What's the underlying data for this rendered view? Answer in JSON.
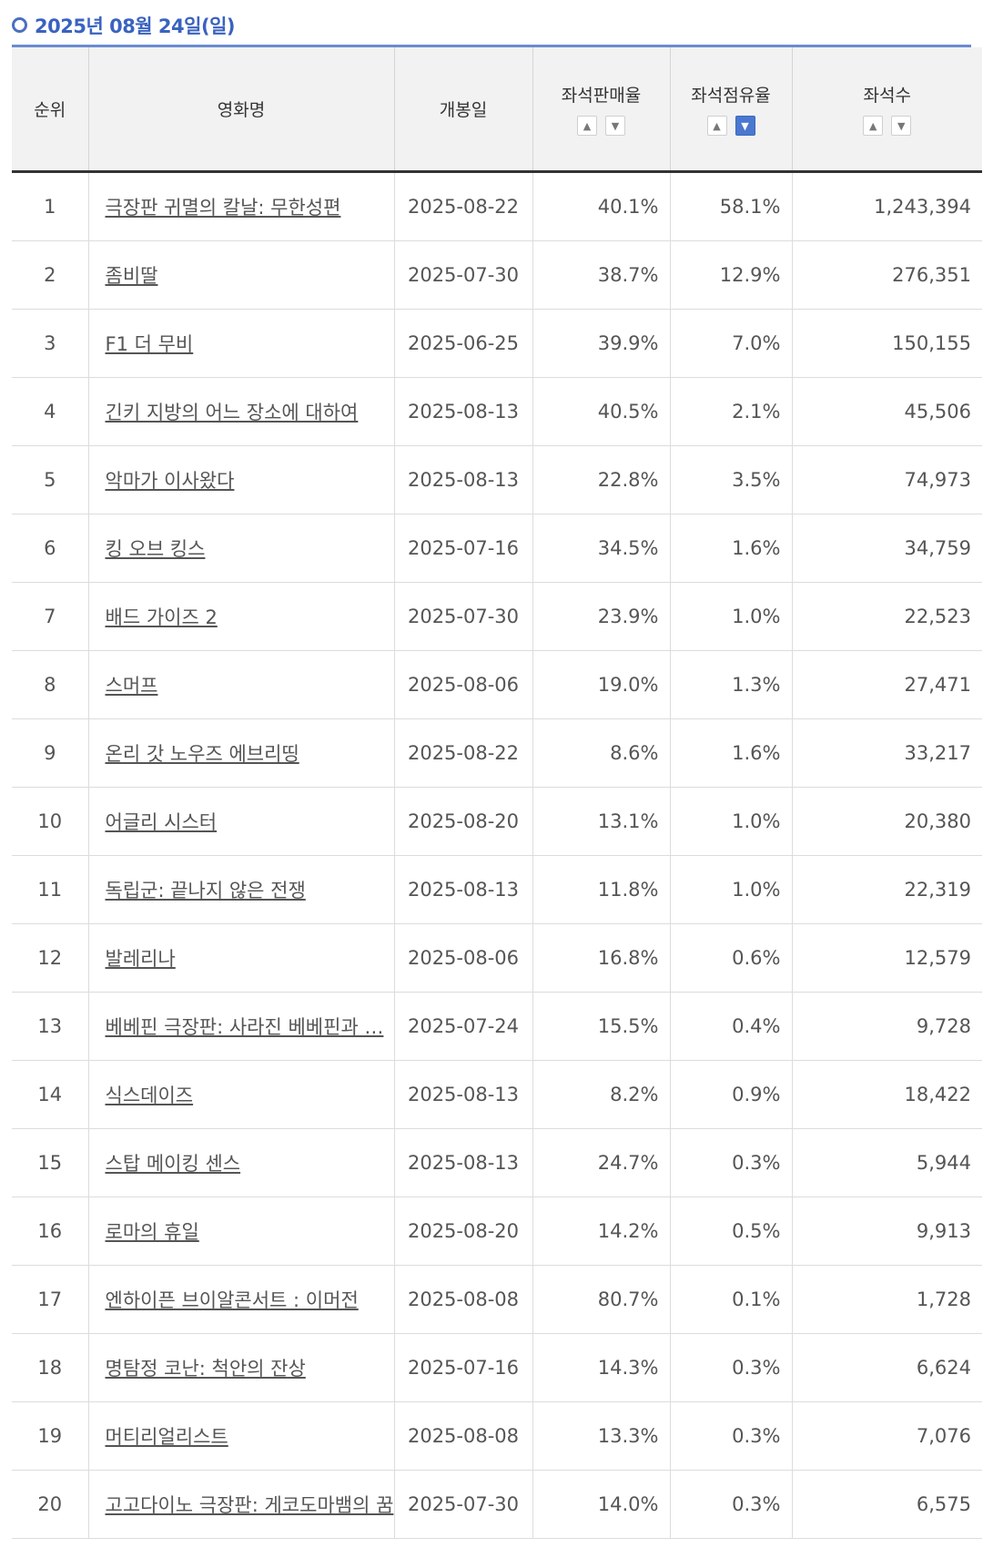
{
  "heading": {
    "date": "2025년 08월 24일(일)"
  },
  "columns": {
    "rank": "순위",
    "title": "영화명",
    "release": "개봉일",
    "sales_rate": "좌석판매율",
    "share": "좌석점유율",
    "seats": "좌석수"
  },
  "sort_icons": {
    "up": "▲",
    "down": "▼"
  },
  "accent_color": "#4a78d0",
  "rows": [
    {
      "rank": "1",
      "title": "극장판 귀멸의 칼날: 무한성편",
      "release": "2025-08-22",
      "sales_rate": "40.1%",
      "share": "58.1%",
      "seats": "1,243,394"
    },
    {
      "rank": "2",
      "title": "좀비딸",
      "release": "2025-07-30",
      "sales_rate": "38.7%",
      "share": "12.9%",
      "seats": "276,351"
    },
    {
      "rank": "3",
      "title": "F1 더 무비",
      "release": "2025-06-25",
      "sales_rate": "39.9%",
      "share": "7.0%",
      "seats": "150,155"
    },
    {
      "rank": "4",
      "title": "긴키 지방의 어느 장소에 대하여",
      "release": "2025-08-13",
      "sales_rate": "40.5%",
      "share": "2.1%",
      "seats": "45,506"
    },
    {
      "rank": "5",
      "title": "악마가 이사왔다",
      "release": "2025-08-13",
      "sales_rate": "22.8%",
      "share": "3.5%",
      "seats": "74,973"
    },
    {
      "rank": "6",
      "title": "킹 오브 킹스",
      "release": "2025-07-16",
      "sales_rate": "34.5%",
      "share": "1.6%",
      "seats": "34,759"
    },
    {
      "rank": "7",
      "title": "배드 가이즈 2",
      "release": "2025-07-30",
      "sales_rate": "23.9%",
      "share": "1.0%",
      "seats": "22,523"
    },
    {
      "rank": "8",
      "title": "스머프",
      "release": "2025-08-06",
      "sales_rate": "19.0%",
      "share": "1.3%",
      "seats": "27,471"
    },
    {
      "rank": "9",
      "title": "온리 갓 노우즈 에브리띵",
      "release": "2025-08-22",
      "sales_rate": "8.6%",
      "share": "1.6%",
      "seats": "33,217"
    },
    {
      "rank": "10",
      "title": "어글리 시스터",
      "release": "2025-08-20",
      "sales_rate": "13.1%",
      "share": "1.0%",
      "seats": "20,380"
    },
    {
      "rank": "11",
      "title": "독립군: 끝나지 않은 전쟁",
      "release": "2025-08-13",
      "sales_rate": "11.8%",
      "share": "1.0%",
      "seats": "22,319"
    },
    {
      "rank": "12",
      "title": "발레리나",
      "release": "2025-08-06",
      "sales_rate": "16.8%",
      "share": "0.6%",
      "seats": "12,579"
    },
    {
      "rank": "13",
      "title": "베베핀 극장판: 사라진 베베핀과 …",
      "release": "2025-07-24",
      "sales_rate": "15.5%",
      "share": "0.4%",
      "seats": "9,728"
    },
    {
      "rank": "14",
      "title": "식스데이즈",
      "release": "2025-08-13",
      "sales_rate": "8.2%",
      "share": "0.9%",
      "seats": "18,422"
    },
    {
      "rank": "15",
      "title": "스탑 메이킹 센스",
      "release": "2025-08-13",
      "sales_rate": "24.7%",
      "share": "0.3%",
      "seats": "5,944"
    },
    {
      "rank": "16",
      "title": "로마의 휴일",
      "release": "2025-08-20",
      "sales_rate": "14.2%",
      "share": "0.5%",
      "seats": "9,913"
    },
    {
      "rank": "17",
      "title": "엔하이픈 브이알콘서트 : 이머전",
      "release": "2025-08-08",
      "sales_rate": "80.7%",
      "share": "0.1%",
      "seats": "1,728"
    },
    {
      "rank": "18",
      "title": "명탐정 코난: 척안의 잔상",
      "release": "2025-07-16",
      "sales_rate": "14.3%",
      "share": "0.3%",
      "seats": "6,624"
    },
    {
      "rank": "19",
      "title": "머티리얼리스트",
      "release": "2025-08-08",
      "sales_rate": "13.3%",
      "share": "0.3%",
      "seats": "7,076"
    },
    {
      "rank": "20",
      "title": "고고다이노 극장판: 게코도마뱀의 꿈",
      "release": "2025-07-30",
      "sales_rate": "14.0%",
      "share": "0.3%",
      "seats": "6,575"
    }
  ]
}
